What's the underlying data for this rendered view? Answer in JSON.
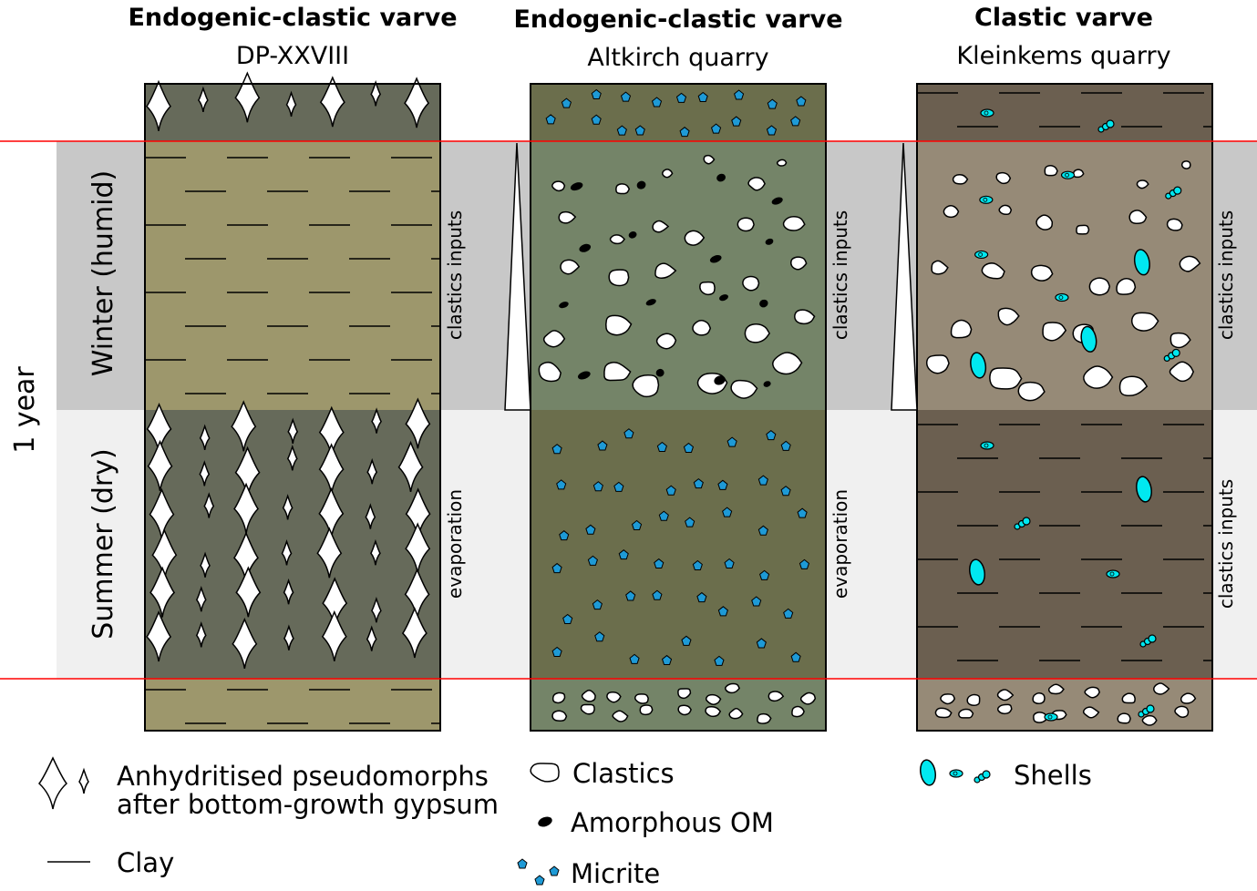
{
  "columns": [
    {
      "title": "Endogenic-clastic varve",
      "subtitle": "DP-XXVIII",
      "winter_label": "clastics inputs",
      "summer_label": "evaporation"
    },
    {
      "title": "Endogenic-clastic varve",
      "subtitle": "Altkirch quarry",
      "winter_label": "clastics inputs",
      "summer_label": "evaporation"
    },
    {
      "title": "Clastic varve",
      "subtitle": "Kleinkems quarry",
      "winter_label": "clastics inputs",
      "summer_label": "clastics inputs"
    }
  ],
  "seasons": {
    "winter": "Winter (humid)",
    "summer": "Summer (dry)",
    "year": "1 year"
  },
  "legend": {
    "gypsum_line1": "Anhydritised pseudomorphs",
    "gypsum_line2": "after bottom-growth gypsum",
    "clay": "Clay",
    "clastics": "Clastics",
    "om": "Amorphous OM",
    "micrite": "Micrite",
    "shells": "Shells"
  },
  "colors": {
    "gypsum_layer": "#666a5a",
    "clay_layer": "#9d976c",
    "micrite_layer": "#6b6e4c",
    "clastic_layer_green": "#748468",
    "brown_clay_layer": "#6b5f50",
    "brown_clastic_layer": "#968a77",
    "winter_band": "#c8c8c8",
    "summer_band": "#f0f0f0",
    "boundary": "#ff0000",
    "micrite": "#1e9ad6",
    "shell": "#00e8f0"
  }
}
